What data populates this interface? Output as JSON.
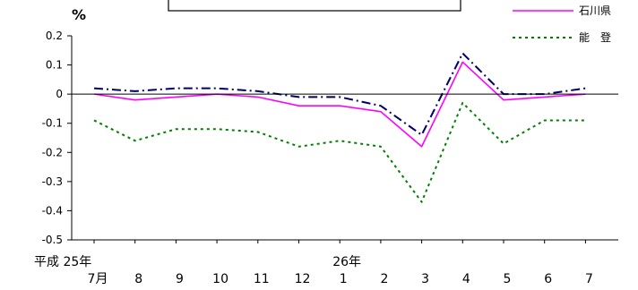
{
  "chart_data": {
    "type": "line",
    "ylabel": "%",
    "ylim": [
      -0.5,
      0.2
    ],
    "yticks": [
      0.2,
      0.1,
      0,
      -0.1,
      -0.2,
      -0.3,
      -0.4,
      -0.5
    ],
    "ytick_labels": [
      "0.2",
      "0.1",
      "0",
      "-0.1",
      "-0.2",
      "-0.3",
      "-0.4",
      "-0.5"
    ],
    "categories": [
      "7月",
      "8",
      "9",
      "10",
      "11",
      "12",
      "1",
      "2",
      "3",
      "4",
      "5",
      "6",
      "7"
    ],
    "year_labels": [
      {
        "label": "平成 25年",
        "at": "7月"
      },
      {
        "label": "26年",
        "at": "1"
      }
    ],
    "grid": false,
    "legend_position": "top-right",
    "series": [
      {
        "key": "national",
        "color": "#000066",
        "style": "dashdot",
        "values": [
          0.02,
          0.01,
          0.02,
          0.02,
          0.01,
          -0.01,
          -0.01,
          -0.04,
          -0.14,
          0.14,
          0.0,
          0.0,
          0.02
        ]
      },
      {
        "key": "ishikawa",
        "name": "石川県",
        "color": "#ff00ff",
        "style": "solid",
        "values": [
          0.0,
          -0.02,
          -0.01,
          0.0,
          -0.01,
          -0.04,
          -0.04,
          -0.06,
          -0.18,
          0.11,
          -0.02,
          -0.01,
          0.0
        ]
      },
      {
        "key": "noto",
        "name": "能　登",
        "color": "#008000",
        "style": "dotted",
        "values": [
          -0.09,
          -0.16,
          -0.12,
          -0.12,
          -0.13,
          -0.18,
          -0.16,
          -0.18,
          -0.37,
          -0.03,
          -0.17,
          -0.09,
          -0.09
        ]
      }
    ]
  }
}
